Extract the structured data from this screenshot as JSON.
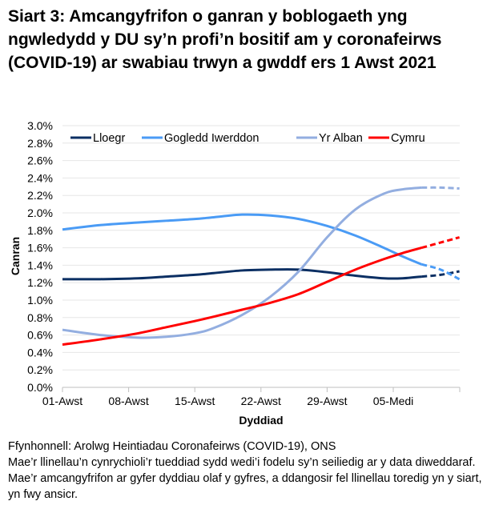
{
  "title": "Siart 3: Amcangyfrifon o ganran y boblogaeth yng ngwledydd y DU sy’n profi’n bositif am y coronafeirws (COVID-19) ar swabiau trwyn a gwddf ers 1 Awst 2021",
  "footer": {
    "source": "Ffynhonnell: Arolwg Heintiadau Coronafeirws (COVID-19), ONS",
    "note": "Mae’r llinellau’n cynrychioli’r tueddiad sydd wedi’i fodelu sy’n seiliedig ar y data diweddaraf. Mae’r amcangyfrifon ar gyfer dyddiau olaf y gyfres, a ddangosir fel llinellau toredig yn y siart, yn fwy ansicr."
  },
  "chart_data": {
    "type": "line",
    "xlabel": "Dyddiad",
    "ylabel": "Canran",
    "ylim": [
      0,
      3.0
    ],
    "yticks": [
      "0.0%",
      "0.2%",
      "0.4%",
      "0.6%",
      "0.8%",
      "1.0%",
      "1.2%",
      "1.4%",
      "1.6%",
      "1.8%",
      "2.0%",
      "2.2%",
      "2.4%",
      "2.6%",
      "2.8%",
      "3.0%"
    ],
    "xticks": [
      "01-Awst",
      "08-Awst",
      "15-Awst",
      "22-Awst",
      "29-Awst",
      "05-Medi"
    ],
    "grid": true,
    "legend": "top",
    "dashed_from_day": 38,
    "x": [
      0,
      4,
      8,
      11,
      14,
      16,
      19,
      22,
      25,
      28,
      31,
      34,
      36,
      38,
      40,
      42
    ],
    "x_note_start": "01-Awst",
    "series": [
      {
        "name": "Lloegr",
        "color": "#0b2f63",
        "values": [
          1.24,
          1.24,
          1.25,
          1.27,
          1.29,
          1.31,
          1.34,
          1.35,
          1.35,
          1.32,
          1.28,
          1.25,
          1.25,
          1.27,
          1.29,
          1.33
        ]
      },
      {
        "name": "Gogledd Iwerddon",
        "color": "#4a9bf5",
        "values": [
          1.81,
          1.86,
          1.89,
          1.91,
          1.93,
          1.95,
          1.98,
          1.97,
          1.93,
          1.85,
          1.74,
          1.6,
          1.5,
          1.41,
          1.35,
          1.24
        ]
      },
      {
        "name": "Yr Alban",
        "color": "#93aee0",
        "values": [
          0.66,
          0.6,
          0.57,
          0.58,
          0.62,
          0.68,
          0.83,
          1.04,
          1.33,
          1.72,
          2.04,
          2.22,
          2.27,
          2.29,
          2.29,
          2.28
        ]
      },
      {
        "name": "Cymru",
        "color": "#ff0000",
        "values": [
          0.49,
          0.55,
          0.62,
          0.69,
          0.76,
          0.81,
          0.89,
          0.97,
          1.07,
          1.21,
          1.35,
          1.47,
          1.54,
          1.6,
          1.66,
          1.72
        ]
      }
    ]
  }
}
